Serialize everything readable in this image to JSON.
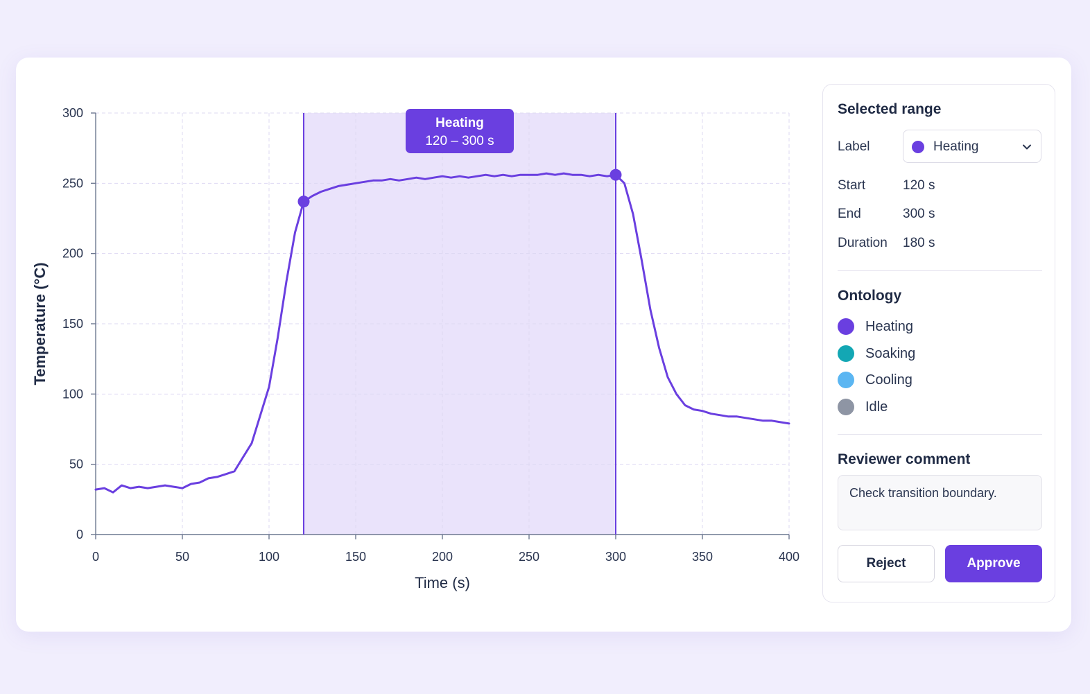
{
  "colors": {
    "accent": "#6a3fe0",
    "heating": "#6a3fe0",
    "soaking": "#13a7b4",
    "cooling": "#5bb6f2",
    "idle": "#8e95a4"
  },
  "panel": {
    "selected_range_title": "Selected range",
    "label_caption": "Label",
    "label_value": "Heating",
    "start_caption": "Start",
    "start_value": "120 s",
    "end_caption": "End",
    "end_value": "300 s",
    "duration_caption": "Duration",
    "duration_value": "180 s",
    "ontology_title": "Ontology",
    "ontology": [
      {
        "name": "Heating",
        "color": "#6a3fe0"
      },
      {
        "name": "Soaking",
        "color": "#13a7b4"
      },
      {
        "name": "Cooling",
        "color": "#5bb6f2"
      },
      {
        "name": "Idle",
        "color": "#8e95a4"
      }
    ],
    "comment_title": "Reviewer comment",
    "comment_text": "Check transition boundary.",
    "reject_label": "Reject",
    "approve_label": "Approve"
  },
  "chart_data": {
    "type": "line",
    "xlabel": "Time (s)",
    "ylabel": "Temperature (°C)",
    "xlim": [
      0,
      400
    ],
    "ylim": [
      0,
      300
    ],
    "xticks": [
      0,
      50,
      100,
      150,
      200,
      250,
      300,
      350,
      400
    ],
    "yticks": [
      0,
      50,
      100,
      150,
      200,
      250,
      300
    ],
    "grid": true,
    "x": [
      0,
      5,
      10,
      15,
      20,
      25,
      30,
      35,
      40,
      45,
      50,
      55,
      60,
      65,
      70,
      75,
      80,
      85,
      90,
      95,
      100,
      105,
      110,
      115,
      120,
      125,
      130,
      135,
      140,
      145,
      150,
      155,
      160,
      165,
      170,
      175,
      180,
      185,
      190,
      195,
      200,
      205,
      210,
      215,
      220,
      225,
      230,
      235,
      240,
      245,
      250,
      255,
      260,
      265,
      270,
      275,
      280,
      285,
      290,
      295,
      300,
      305,
      310,
      315,
      320,
      325,
      330,
      335,
      340,
      345,
      350,
      355,
      360,
      365,
      370,
      375,
      380,
      385,
      390,
      395,
      400
    ],
    "y": [
      32,
      33,
      30,
      35,
      33,
      34,
      33,
      34,
      35,
      34,
      33,
      36,
      37,
      40,
      41,
      43,
      45,
      55,
      65,
      85,
      105,
      140,
      180,
      215,
      237,
      241,
      244,
      246,
      248,
      249,
      250,
      251,
      252,
      252,
      253,
      252,
      253,
      254,
      253,
      254,
      255,
      254,
      255,
      254,
      255,
      256,
      255,
      256,
      255,
      256,
      256,
      256,
      257,
      256,
      257,
      256,
      256,
      255,
      256,
      255,
      256,
      250,
      228,
      195,
      160,
      133,
      112,
      100,
      92,
      89,
      88,
      86,
      85,
      84,
      84,
      83,
      82,
      81,
      81,
      80,
      79
    ],
    "selection": {
      "label": "Heating",
      "start": 120,
      "end": 300,
      "range_text": "120 – 300 s"
    }
  }
}
